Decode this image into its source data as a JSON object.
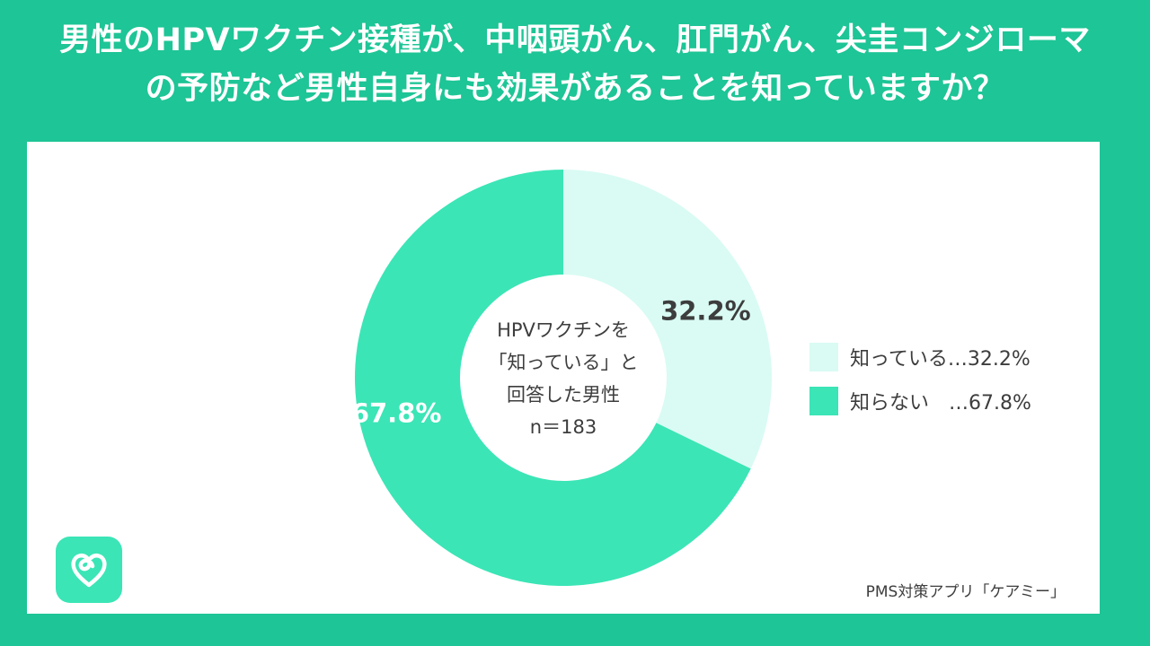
{
  "title": {
    "line1": "男性のHPVワクチン接種が、中咽頭がん、肛門がん、尖圭コンジローマ",
    "line2": "の予防など男性自身にも効果があることを知っていますか？"
  },
  "chart_data": {
    "type": "pie",
    "donut": true,
    "center_text": [
      "HPVワクチンを",
      "「知っている」と",
      "回答した男性",
      "n＝183"
    ],
    "slices": [
      {
        "label": "知っている",
        "value": 32.2,
        "value_label": "32.2%",
        "color": "#d9fbf3",
        "text_color": "#3d3d3d"
      },
      {
        "label": "知らない",
        "value": 67.8,
        "value_label": "67.8%",
        "color": "#3be5b6",
        "text_color": "#ffffff"
      }
    ],
    "legend": [
      {
        "label": "知っている…32.2%"
      },
      {
        "label": "知らない　…67.8%"
      }
    ],
    "legend_position": "right"
  },
  "source": "PMS対策アプリ「ケアミー」",
  "logo_icon": "heart-loop-icon",
  "colors": {
    "background": "#1ec596",
    "panel": "#ffffff"
  }
}
